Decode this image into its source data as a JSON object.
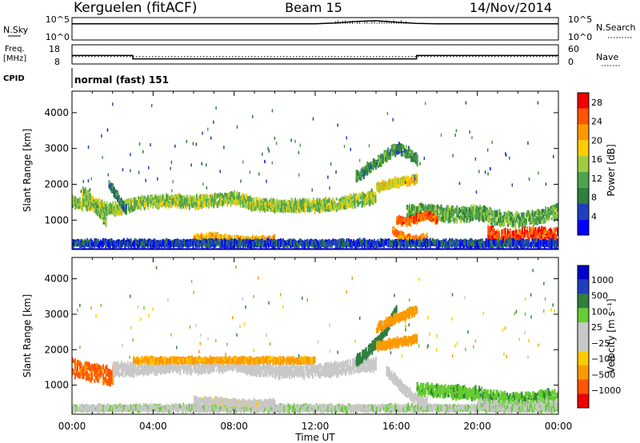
{
  "header": {
    "station": "Kerguelen (fitACF)",
    "beam": "Beam 15",
    "date": "14/Nov/2014"
  },
  "panels": {
    "nsky_label": "N.Sky",
    "nsearch_label": "N.Search",
    "nsky_ticks": [
      "10^5",
      "10^0"
    ],
    "nsearch_ticks": [
      "10^5",
      "10^0"
    ],
    "freq_label_1": "Freq.",
    "freq_label_2": "[MHz]",
    "freq_ticks": [
      "18",
      "8"
    ],
    "nave_label": "Nave",
    "nave_ticks": [
      "60",
      "0"
    ],
    "cpid_label": "CPID",
    "cpid_text": "normal (fast) 151"
  },
  "colors": {
    "power_scale": [
      "#0000ff",
      "#1f3fbf",
      "#2f7f3f",
      "#4fa34f",
      "#9fcc3f",
      "#ffcc00",
      "#ff9900",
      "#ff5500",
      "#ee0000"
    ],
    "velocity_scale": [
      "#ee0000",
      "#ff5500",
      "#ff9900",
      "#ffcc00",
      "#c8c8c8",
      "#c8c8c8",
      "#66cc33",
      "#2f7f3f",
      "#1f3fbf",
      "#0000cc"
    ]
  },
  "chart_data": [
    {
      "type": "line",
      "name": "nsky-nsearch",
      "x": [
        "00:00",
        "01:00",
        "02:00",
        "03:00",
        "04:00",
        "05:00",
        "06:00",
        "07:00",
        "08:00",
        "09:00",
        "10:00",
        "11:00",
        "12:00",
        "13:00",
        "14:00",
        "15:00",
        "16:00",
        "17:00",
        "18:00",
        "19:00",
        "20:00",
        "21:00",
        "22:00",
        "23:00",
        "24:00"
      ],
      "series": [
        {
          "values": [
            3.8,
            3.8,
            3.8,
            3.8,
            3.8,
            3.8,
            3.8,
            3.8,
            3.8,
            3.8,
            3.8,
            3.8,
            3.8,
            4.0,
            4.4,
            4.6,
            4.2,
            3.9,
            3.8,
            3.8,
            3.8,
            3.8,
            3.8,
            3.8,
            3.8
          ]
        }
      ],
      "ylim": [
        0,
        5
      ]
    },
    {
      "type": "line",
      "name": "frequency-nave",
      "x": [
        "00:00",
        "03:00",
        "03:00",
        "17:00",
        "17:00",
        "24:00"
      ],
      "series": [
        {
          "values": [
            12.3,
            12.3,
            10.2,
            10.2,
            12.3,
            12.3
          ]
        },
        {
          "values": [
            11.6,
            11.6,
            11.6,
            11.6,
            11.6,
            11.6
          ]
        }
      ],
      "ylim": [
        8,
        18
      ]
    },
    {
      "type": "heatmap",
      "name": "power",
      "xlabel": "",
      "ylabel": "Slant Range [km]",
      "x_ticks": [
        "00:00",
        "04:00",
        "08:00",
        "12:00",
        "16:00",
        "20:00",
        "00:00"
      ],
      "xlim": [
        0,
        24
      ],
      "ylim": [
        180,
        4600
      ],
      "y_ticks": [
        1000,
        2000,
        3000,
        4000
      ],
      "colorbar": {
        "label": "Power [dB]",
        "ticks": [
          4,
          8,
          12,
          16,
          20,
          24,
          28
        ],
        "range": [
          0,
          30
        ]
      },
      "bands": [
        {
          "t": [
            0,
            0.5,
            1,
            1.5,
            2,
            2.5,
            3,
            3.5,
            4,
            5,
            6,
            7,
            8,
            9,
            10,
            11,
            12,
            13,
            14,
            14.5,
            15
          ],
          "r": [
            1500,
            1450,
            1450,
            1350,
            1300,
            1350,
            1450,
            1500,
            1500,
            1550,
            1500,
            1550,
            1600,
            1450,
            1400,
            1400,
            1400,
            1450,
            1550,
            1600,
            1650
          ],
          "w": 280,
          "v": 14
        },
        {
          "t": [
            15,
            15.5,
            16,
            16.5,
            17
          ],
          "r": [
            1900,
            2000,
            2050,
            2100,
            2150
          ],
          "w": 180,
          "v": 18
        },
        {
          "t": [
            16.5,
            17,
            18,
            19,
            20,
            20.5,
            21,
            22,
            23,
            24
          ],
          "r": [
            1200,
            1250,
            1200,
            1150,
            1200,
            1150,
            1050,
            1000,
            1100,
            1250
          ],
          "w": 350,
          "v": 12
        },
        {
          "t": [
            20.5,
            21,
            21.5,
            22,
            22.5,
            23,
            23.5,
            24
          ],
          "r": [
            650,
            550,
            500,
            550,
            600,
            650,
            550,
            600
          ],
          "w": 350,
          "v": 26
        },
        {
          "t": [
            15.8,
            16.2,
            16.5,
            17,
            17.5
          ],
          "r": [
            700,
            550,
            450,
            450,
            500
          ],
          "w": 160,
          "v": 22
        },
        {
          "t": [
            16,
            16.5,
            17,
            17.5,
            18
          ],
          "r": [
            1000,
            950,
            1050,
            1150,
            1000
          ],
          "w": 140,
          "v": 24
        },
        {
          "t": [
            6,
            7,
            8,
            9,
            10
          ],
          "r": [
            500,
            520,
            450,
            430,
            450
          ],
          "w": 130,
          "v": 20
        },
        {
          "t": [
            0,
            1,
            2,
            3,
            4,
            5,
            6,
            7,
            8,
            9,
            10,
            11,
            12,
            13,
            14,
            15,
            16,
            17,
            18,
            19,
            20,
            21,
            22,
            23,
            24
          ],
          "r": [
            350,
            350,
            350,
            350,
            350,
            350,
            350,
            350,
            350,
            350,
            350,
            350,
            350,
            350,
            350,
            350,
            350,
            350,
            350,
            350,
            350,
            350,
            350,
            350,
            350
          ],
          "w": 120,
          "v": 5
        },
        {
          "t": [
            14,
            14.5,
            15,
            15.5,
            16,
            16.5,
            17
          ],
          "r": [
            2200,
            2400,
            2600,
            2800,
            3000,
            2900,
            2700
          ],
          "w": 250,
          "v": 10
        },
        {
          "t": [
            0.5,
            0.8,
            1.1,
            1.4,
            1.7
          ],
          "r": [
            1800,
            1650,
            1400,
            1150,
            950
          ],
          "w": 200,
          "v": 13
        },
        {
          "t": [
            1.8,
            2.1,
            2.4,
            2.7
          ],
          "r": [
            2000,
            1750,
            1500,
            1250
          ],
          "w": 180,
          "v": 8
        }
      ]
    },
    {
      "type": "heatmap",
      "name": "velocity",
      "xlabel": "Time UT",
      "ylabel": "Slant Range [km]",
      "x_ticks": [
        "00:00",
        "04:00",
        "08:00",
        "12:00",
        "16:00",
        "20:00",
        "00:00"
      ],
      "xlim": [
        0,
        24
      ],
      "ylim": [
        180,
        4600
      ],
      "y_ticks": [
        1000,
        2000,
        3000,
        4000
      ],
      "colorbar": {
        "label": "Velocity [m s⁻¹]",
        "ticks": [
          "1000",
          "500",
          "100",
          "25",
          "−25",
          "−100",
          "−500",
          "−1000"
        ]
      },
      "bands": [
        {
          "t": [
            0,
            0.5,
            1,
            1.5,
            2
          ],
          "r": [
            1500,
            1400,
            1350,
            1300,
            1250
          ],
          "w": 450,
          "v": -600
        },
        {
          "t": [
            2,
            3,
            4,
            5,
            6,
            7,
            8,
            9,
            10,
            11,
            12,
            13,
            14,
            15
          ],
          "r": [
            1450,
            1450,
            1500,
            1550,
            1500,
            1550,
            1600,
            1450,
            1400,
            1400,
            1400,
            1450,
            1550,
            1600
          ],
          "w": 320,
          "v": 0
        },
        {
          "t": [
            3,
            4,
            5,
            6,
            7,
            8,
            9,
            10,
            11,
            12
          ],
          "r": [
            1700,
            1700,
            1700,
            1700,
            1700,
            1700,
            1700,
            1700,
            1700,
            1700
          ],
          "w": 80,
          "v": -120
        },
        {
          "t": [
            14,
            14.5,
            15,
            15.5,
            16
          ],
          "r": [
            1700,
            1900,
            2200,
            2600,
            3100
          ],
          "w": 250,
          "v": 200
        },
        {
          "t": [
            15,
            15.5,
            16,
            16.5,
            17
          ],
          "r": [
            2100,
            2150,
            2200,
            2250,
            2300
          ],
          "w": 160,
          "v": -180
        },
        {
          "t": [
            15.5,
            16,
            16.5,
            17,
            17.5
          ],
          "r": [
            1400,
            1100,
            800,
            600,
            500
          ],
          "w": 220,
          "v": 0
        },
        {
          "t": [
            17,
            18,
            19,
            20,
            20.5,
            21,
            22,
            23,
            24
          ],
          "r": [
            900,
            850,
            800,
            750,
            700,
            650,
            600,
            650,
            700
          ],
          "w": 300,
          "v": 80
        },
        {
          "t": [
            20,
            21,
            22,
            23,
            24
          ],
          "r": [
            450,
            420,
            400,
            420,
            450
          ],
          "w": 200,
          "v": 20
        },
        {
          "t": [
            0,
            1,
            2,
            3,
            4,
            5,
            6,
            7,
            8,
            9,
            10,
            11,
            12,
            13,
            14,
            15,
            16,
            17,
            18,
            19,
            20,
            21,
            22,
            23,
            24
          ],
          "r": [
            350,
            350,
            350,
            350,
            350,
            350,
            350,
            350,
            350,
            350,
            350,
            350,
            350,
            350,
            350,
            350,
            350,
            350,
            350,
            350,
            350,
            350,
            350,
            350,
            350
          ],
          "w": 110,
          "v": 15
        },
        {
          "t": [
            6,
            7,
            8,
            9,
            10
          ],
          "r": [
            550,
            560,
            500,
            480,
            500
          ],
          "w": 110,
          "v": -10
        },
        {
          "t": [
            15,
            15.5,
            16,
            16.5,
            17
          ],
          "r": [
            2600,
            2750,
            2900,
            3000,
            3100
          ],
          "w": 180,
          "v": -300
        }
      ]
    }
  ]
}
